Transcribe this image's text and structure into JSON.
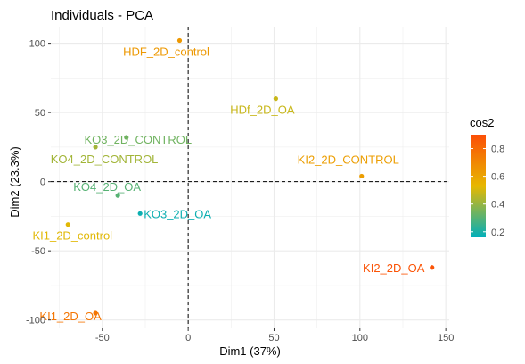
{
  "chart_data": {
    "type": "scatter",
    "title": "Individuals - PCA",
    "xlabel": "Dim1 (37%)",
    "ylabel": "Dim2 (23.3%)",
    "xlim": [
      -80,
      152
    ],
    "ylim": [
      -106,
      112
    ],
    "xticks": [
      -50,
      0,
      50,
      100,
      150
    ],
    "yticks": [
      -100,
      -50,
      0,
      50,
      100
    ],
    "xtick_labels": [
      "-50",
      "0",
      "50",
      "100",
      "150"
    ],
    "ytick_labels": [
      "-100",
      "-50",
      "0",
      "50",
      "100"
    ],
    "grid": true,
    "reference_lines": {
      "x": 0,
      "y": 0,
      "style": "dashed"
    },
    "points": [
      {
        "label": "HDF_2D_control",
        "x": -5,
        "y": 102,
        "cos2": 0.64
      },
      {
        "label": "HDf_2D_OA",
        "x": 51,
        "y": 60,
        "cos2": 0.48
      },
      {
        "label": "KO3_2D_CONTROL",
        "x": -36,
        "y": 32,
        "cos2": 0.34
      },
      {
        "label": "KO4_2D_CONTROL",
        "x": -54,
        "y": 25,
        "cos2": 0.42
      },
      {
        "label": "KI2_2D_CONTROL",
        "x": 101,
        "y": 4,
        "cos2": 0.62
      },
      {
        "label": "KO4_2D_OA",
        "x": -41,
        "y": -10,
        "cos2": 0.3
      },
      {
        "label": "KO3_2D_OA",
        "x": -28,
        "y": -23,
        "cos2": 0.18
      },
      {
        "label": "KI1_2D_control",
        "x": -70,
        "y": -31,
        "cos2": 0.52
      },
      {
        "label": "KI2_2D_OA",
        "x": 142,
        "y": -62,
        "cos2": 0.88
      },
      {
        "label": "KI1_2D_OA",
        "x": -54,
        "y": -95,
        "cos2": 0.76
      }
    ],
    "legend": {
      "title": "cos2",
      "position": "right",
      "ticks": [
        0.2,
        0.4,
        0.6,
        0.8
      ],
      "tick_labels": [
        "0.2",
        "0.4",
        "0.6",
        "0.8"
      ],
      "range": [
        0.16,
        0.9
      ],
      "gradient_colors": [
        "#00AFBB",
        "#E7B800",
        "#FC4E07"
      ]
    },
    "colors": {
      "panel_background": "#ffffff",
      "grid": "#ebebeb",
      "axis_text": "#4d4d4d"
    }
  }
}
